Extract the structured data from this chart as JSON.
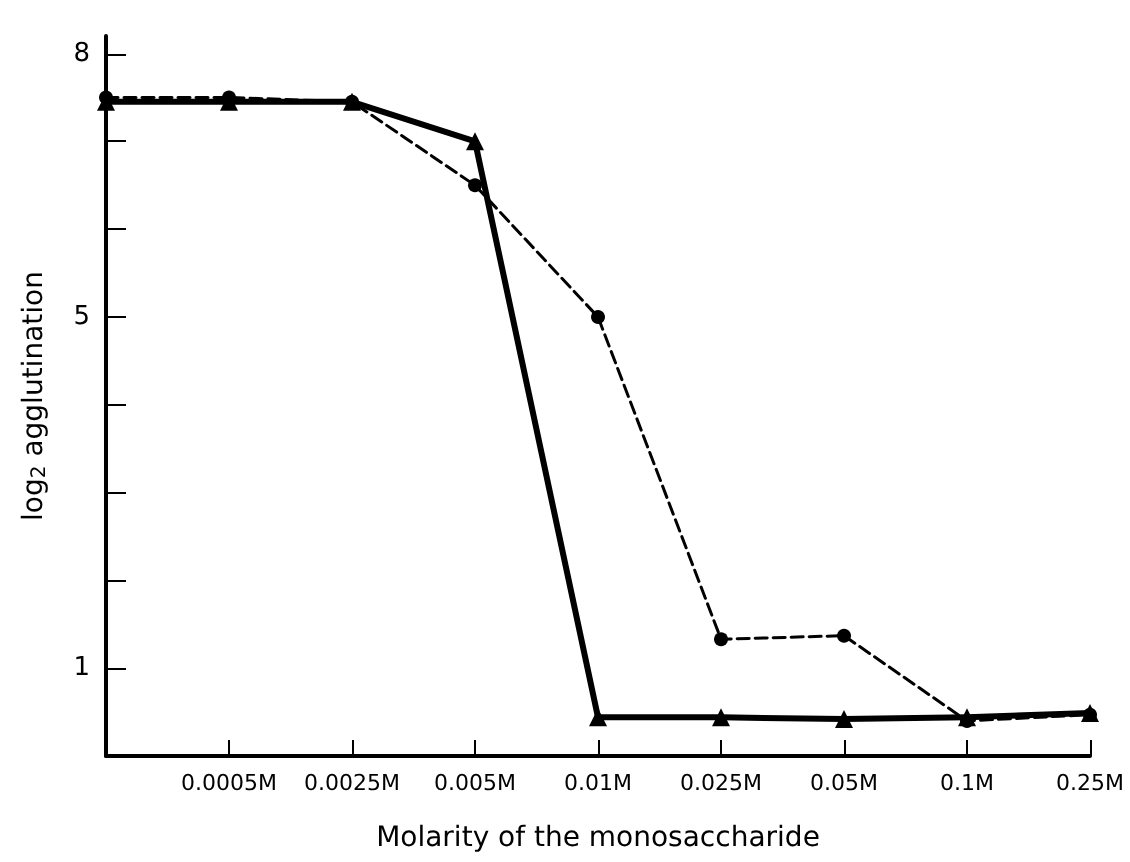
{
  "chart_data": {
    "type": "line",
    "xlabel": "Molarity of the monosaccharide",
    "ylabel": "log$_{2}$ agglutination",
    "categories": [
      null,
      "0.0005M",
      "0.0025M",
      "0.005M",
      "0.01M",
      "0.025M",
      "0.05M",
      "0.1M",
      "0.25M"
    ],
    "series": [
      {
        "color": "#000000",
        "marker": "circle",
        "line_style": "dashed",
        "values": [
          7.5,
          7.5,
          7.45,
          6.5,
          5.0,
          1.33,
          1.37,
          0.4,
          0.47
        ]
      },
      {
        "color": "#000000",
        "marker": "triangle",
        "line_style": "solid",
        "values": [
          7.45,
          7.45,
          7.45,
          7.0,
          0.44,
          0.44,
          0.42,
          0.44,
          0.49
        ]
      }
    ],
    "ylim": [
      0,
      8.2
    ],
    "yticks": [
      {
        "value": 1,
        "label": "1"
      },
      {
        "value": 2,
        "label": null
      },
      {
        "value": 3,
        "label": null
      },
      {
        "value": 4,
        "label": null
      },
      {
        "value": 5,
        "label": "5"
      },
      {
        "value": 6,
        "label": null
      },
      {
        "value": 7,
        "label": null
      },
      {
        "value": 8,
        "label": "8"
      }
    ],
    "grid": false
  }
}
